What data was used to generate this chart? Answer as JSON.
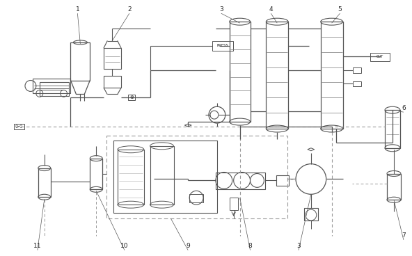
{
  "bg_color": "#ffffff",
  "lc": "#555555",
  "dc": "#999999",
  "thin": 0.7,
  "med": 0.9,
  "thick": 1.1
}
